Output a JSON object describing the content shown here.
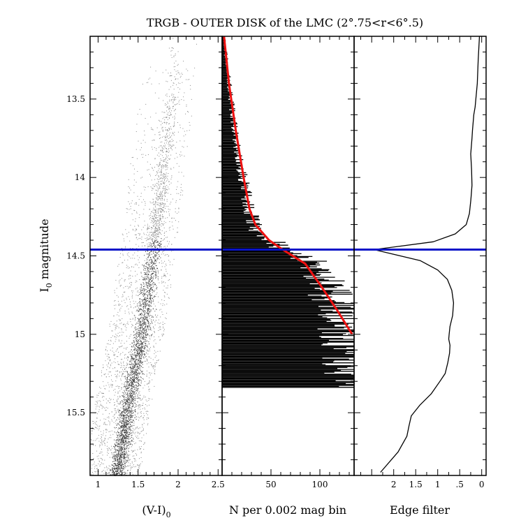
{
  "title": "TRGB - OUTER DISK of the LMC (2°.75<r<6°.5)",
  "y_axis": {
    "label_main": "I",
    "label_sub": "0",
    "label_rest": " magnitude",
    "range": [
      13.1,
      15.9
    ],
    "inverted": true,
    "ticks": [
      13.5,
      14,
      14.5,
      15,
      15.5
    ],
    "tick_labels": [
      "13.5",
      "14",
      "14.5",
      "15",
      "15.5"
    ]
  },
  "trgb_magnitude": 14.46,
  "colors": {
    "cmd_points": "#555555",
    "histogram": "#000000",
    "fit": "#ee1111",
    "trgb_line": "#0a14c8"
  },
  "chart_data": [
    {
      "type": "scatter",
      "name": "color-magnitude diagram",
      "xlabel_main": "(V-I)",
      "xlabel_sub": "0",
      "xlim": [
        0.9,
        2.55
      ],
      "x_ticks": [
        1,
        1.5,
        2,
        2.5
      ],
      "x_tick_labels": [
        "1",
        "1.5",
        "2",
        "2.5"
      ],
      "ylim": [
        13.1,
        15.9
      ],
      "rgb_ridge": [
        [
          13.15,
          2.0
        ],
        [
          14.5,
          1.68
        ],
        [
          15.0,
          1.54
        ],
        [
          15.5,
          1.36
        ],
        [
          15.9,
          1.24
        ]
      ]
    },
    {
      "type": "bar",
      "name": "luminosity function histogram",
      "xlabel": "N per 0.002 mag bin",
      "xlim": [
        0,
        135
      ],
      "x_ticks": [
        50,
        100
      ],
      "x_tick_labels": [
        "50",
        "100"
      ],
      "ylim": [
        13.1,
        15.9
      ],
      "fit_line": {
        "x": [
          13.1,
          13.4,
          13.7,
          14.0,
          14.2,
          14.3,
          14.4,
          14.46,
          14.55,
          14.7,
          14.85,
          15.0
        ],
        "y": [
          2,
          7,
          14,
          22,
          28,
          34,
          48,
          62,
          85,
          102,
          118,
          133
        ]
      },
      "envelope": {
        "mag": [
          13.1,
          13.5,
          13.8,
          14.0,
          14.2,
          14.35,
          14.42,
          14.46,
          14.55,
          14.7,
          14.9,
          15.1,
          15.3
        ],
        "counts": [
          2,
          9,
          15,
          21,
          28,
          36,
          55,
          65,
          92,
          110,
          122,
          130,
          132
        ]
      }
    },
    {
      "type": "line",
      "name": "edge filter response",
      "xlabel": "Edge filter",
      "x_reversed": true,
      "xlim": [
        2.9,
        -0.1
      ],
      "x_ticks": [
        2,
        1.5,
        1,
        0.5,
        0
      ],
      "x_tick_labels": [
        "2",
        "1.5",
        "1",
        ".5",
        "0"
      ],
      "x": [
        0.05,
        0.08,
        0.1,
        0.15,
        0.18,
        0.21,
        0.22,
        0.25,
        0.23,
        0.22,
        0.24,
        0.25,
        0.28,
        0.35,
        0.6,
        1.1,
        1.9,
        2.45,
        2.0,
        1.4,
        1.0,
        0.78,
        0.68,
        0.64,
        0.66,
        0.72,
        0.74,
        0.75,
        0.72,
        0.73,
        0.77,
        0.83,
        0.95,
        1.15,
        1.4,
        1.6,
        1.65,
        1.7,
        1.9,
        2.3
      ],
      "y": [
        13.1,
        13.25,
        13.4,
        13.55,
        13.6,
        13.7,
        13.75,
        13.85,
        13.95,
        14.05,
        14.12,
        14.15,
        14.23,
        14.3,
        14.36,
        14.41,
        14.44,
        14.46,
        14.49,
        14.53,
        14.59,
        14.65,
        14.72,
        14.8,
        14.88,
        14.95,
        15.0,
        15.03,
        15.07,
        15.12,
        15.18,
        15.25,
        15.3,
        15.38,
        15.45,
        15.52,
        15.58,
        15.65,
        15.75,
        15.88
      ]
    }
  ]
}
